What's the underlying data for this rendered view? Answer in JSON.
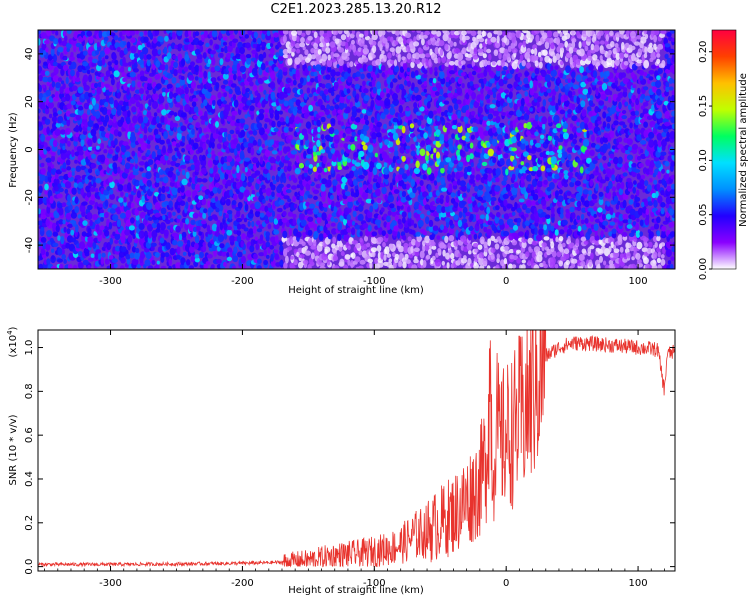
{
  "title": "C2E1.2023.285.13.20.R12",
  "colors": {
    "snr_line": "#e8332d",
    "spec_background": "#6a2ad8",
    "spec_dark": "#3a10c8",
    "axis": "#000000"
  },
  "chart_data": [
    {
      "type": "heatmap",
      "xlabel": "Height of straight line (km)",
      "ylabel": "Frequency (Hz)",
      "xlim": [
        -355,
        128
      ],
      "ylim": [
        -50,
        50
      ],
      "xticks": [
        -300,
        -200,
        -100,
        0,
        100
      ],
      "xtick_labels": [
        "-300",
        "-200",
        "-100",
        "0",
        "100"
      ],
      "yticks": [
        -40,
        -20,
        0,
        20,
        40
      ],
      "ytick_labels": [
        "-40",
        "-20",
        "0",
        "20",
        "40"
      ],
      "colorbar": {
        "label": "Normalized spectral amplitude",
        "range": [
          0,
          0.22
        ],
        "ticks": [
          0,
          0.05,
          0.1,
          0.15,
          0.2
        ],
        "tick_labels": [
          "0.00",
          "0.05",
          "0.10",
          "0.15",
          "0.20"
        ],
        "colormap": [
          "#ffffff",
          "#8a00ff",
          "#2200ff",
          "#0090ff",
          "#00e0ff",
          "#00ff60",
          "#c0ff00",
          "#ffc000",
          "#ff4000",
          "#ff0040"
        ]
      },
      "low_signal_regions": [
        {
          "x": [
            -170,
            120
          ],
          "y": [
            -50,
            -37
          ]
        },
        {
          "x": [
            -170,
            120
          ],
          "y": [
            35,
            50
          ]
        }
      ],
      "peak_regions": [
        {
          "x": [
            -160,
            60
          ],
          "y": [
            -10,
            10
          ],
          "value": 0.16
        }
      ]
    },
    {
      "type": "line",
      "xlabel": "Height of straight line (km)",
      "ylabel": "SNR (10 * v/v)",
      "y_multiplier": "(x10",
      "y_multiplier_exp": "4",
      "y_multiplier_close": ")",
      "xlim": [
        -355,
        128
      ],
      "ylim": [
        -0.02,
        1.08
      ],
      "xticks": [
        -300,
        -200,
        -100,
        0,
        100
      ],
      "xtick_labels": [
        "-300",
        "-200",
        "-100",
        "0",
        "100"
      ],
      "yticks": [
        0,
        0.2,
        0.4,
        0.6,
        0.8,
        1.0
      ],
      "ytick_labels": [
        "0.0",
        "0.2",
        "0.4",
        "0.6",
        "0.8",
        "1.0"
      ],
      "series": [
        {
          "x": [
            -355,
            -300,
            -250,
            -200,
            -170,
            -150,
            -130,
            -110,
            -90,
            -80,
            -70,
            -60,
            -50,
            -40,
            -30,
            -20,
            -15,
            -12,
            -10,
            -8,
            -5,
            0,
            5,
            10,
            15,
            20,
            25,
            30,
            40,
            50,
            60,
            80,
            100,
            115,
            120,
            122,
            128
          ],
          "values": [
            0.01,
            0.01,
            0.012,
            0.015,
            0.02,
            0.03,
            0.05,
            0.06,
            0.08,
            0.1,
            0.14,
            0.16,
            0.2,
            0.24,
            0.3,
            0.38,
            0.5,
            0.9,
            0.35,
            0.7,
            0.55,
            0.6,
            0.62,
            0.68,
            0.72,
            0.8,
            0.9,
            0.96,
            1.0,
            1.02,
            1.02,
            1.01,
            1.0,
            0.99,
            0.8,
            0.97,
            0.98
          ]
        }
      ]
    }
  ]
}
